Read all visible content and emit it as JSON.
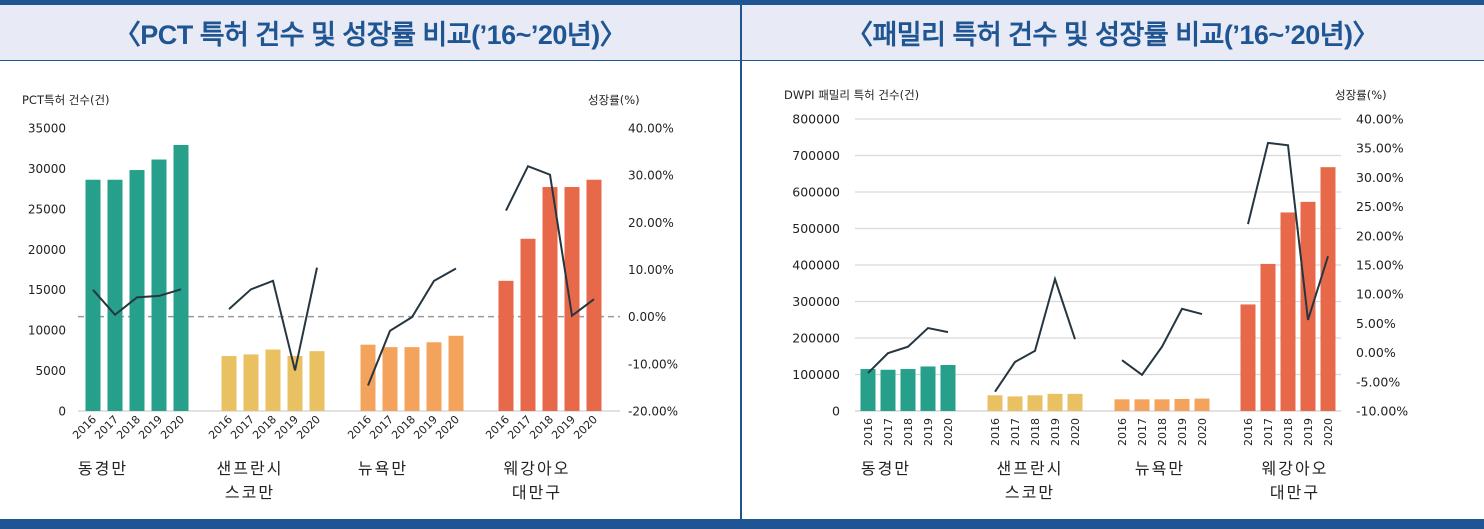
{
  "titles": {
    "left": "〈PCT 특허 건수 및 성장률 비교(’16~’20년)〉",
    "right": "〈패밀리 특허 건수 및 성장률 비교(’16~’20년)〉"
  },
  "colors": {
    "border": "#1f5592",
    "series": [
      "#26a08a",
      "#e9c062",
      "#f3a35c",
      "#e8694a"
    ],
    "line": "#263640"
  },
  "chart_data": [
    {
      "type": "bar",
      "combo": "bar+line",
      "title": "〈PCT 특허 건수 및 성장률 비교(’16~’20년)〉",
      "ylabel": "PCT특허 건수(건)",
      "y2label": "성장률(%)",
      "ylim": [
        0,
        35000
      ],
      "yticks": [
        "35000",
        "30000",
        "25000",
        "20000",
        "15000",
        "10000",
        "5000",
        "0"
      ],
      "y2lim": [
        -20,
        40
      ],
      "y2ticks": [
        "40.00%",
        "30.00%",
        "20.00%",
        "10.00%",
        "0.00%",
        "-10.00%",
        "-20.00%"
      ],
      "zero_line": "dashed",
      "grid": false,
      "years": [
        "2016",
        "2017",
        "2018",
        "2019",
        "2020"
      ],
      "groups": [
        {
          "name": [
            "동경만"
          ],
          "counts": [
            28600,
            28600,
            29800,
            31100,
            32900
          ],
          "growth": [
            5.7,
            0.4,
            4.1,
            4.4,
            5.8
          ]
        },
        {
          "name": [
            "샌프란시",
            "스코만"
          ],
          "counts": [
            6800,
            7000,
            7600,
            6800,
            7400
          ],
          "growth": [
            1.6,
            5.8,
            7.6,
            -11.4,
            10.4
          ]
        },
        {
          "name": [
            "뉴욕만"
          ],
          "counts": [
            8200,
            7900,
            7900,
            8500,
            9300
          ],
          "growth": [
            -14.6,
            -3.0,
            -0.1,
            7.6,
            10.2
          ]
        },
        {
          "name": [
            "웨강아오",
            "대만구"
          ],
          "counts": [
            16100,
            21300,
            27700,
            27700,
            28600
          ],
          "growth": [
            22.5,
            31.9,
            30.1,
            0.2,
            3.7
          ]
        }
      ]
    },
    {
      "type": "bar",
      "combo": "bar+line",
      "title": "〈패밀리 특허 건수 및 성장률 비교(’16~’20년)〉",
      "ylabel": "DWPI 패밀리 특허 건수(건)",
      "y2label": "성장률(%)",
      "ylim": [
        0,
        800000
      ],
      "yticks": [
        "800000",
        "700000",
        "600000",
        "500000",
        "400000",
        "300000",
        "200000",
        "100000",
        "0"
      ],
      "y2lim": [
        -10,
        40
      ],
      "y2ticks": [
        "40.00%",
        "35.00%",
        "30.00%",
        "25.00%",
        "20.00%",
        "15.00%",
        "10.00%",
        "5.00%",
        "0.00%",
        "-5.00%",
        "-10.00%"
      ],
      "grid": true,
      "years": [
        "2016",
        "2017",
        "2018",
        "2019",
        "2020"
      ],
      "groups": [
        {
          "name": [
            "동경만"
          ],
          "counts": [
            115000,
            113000,
            115000,
            122000,
            126000
          ],
          "growth": [
            -3.5,
            -0.1,
            1.0,
            4.2,
            3.5
          ]
        },
        {
          "name": [
            "샌프란시",
            "스코만"
          ],
          "counts": [
            43000,
            40000,
            43000,
            47000,
            47000
          ],
          "growth": [
            -6.7,
            -1.6,
            0.3,
            12.6,
            2.3
          ]
        },
        {
          "name": [
            "뉴욕만"
          ],
          "counts": [
            32000,
            32000,
            32000,
            33000,
            34000
          ],
          "growth": [
            -1.3,
            -3.8,
            1.0,
            7.5,
            6.6
          ]
        },
        {
          "name": [
            "웨강아오",
            "대만구"
          ],
          "counts": [
            292000,
            403000,
            544000,
            573000,
            668000
          ],
          "growth": [
            22.0,
            35.9,
            35.5,
            5.6,
            16.5
          ]
        }
      ]
    }
  ]
}
